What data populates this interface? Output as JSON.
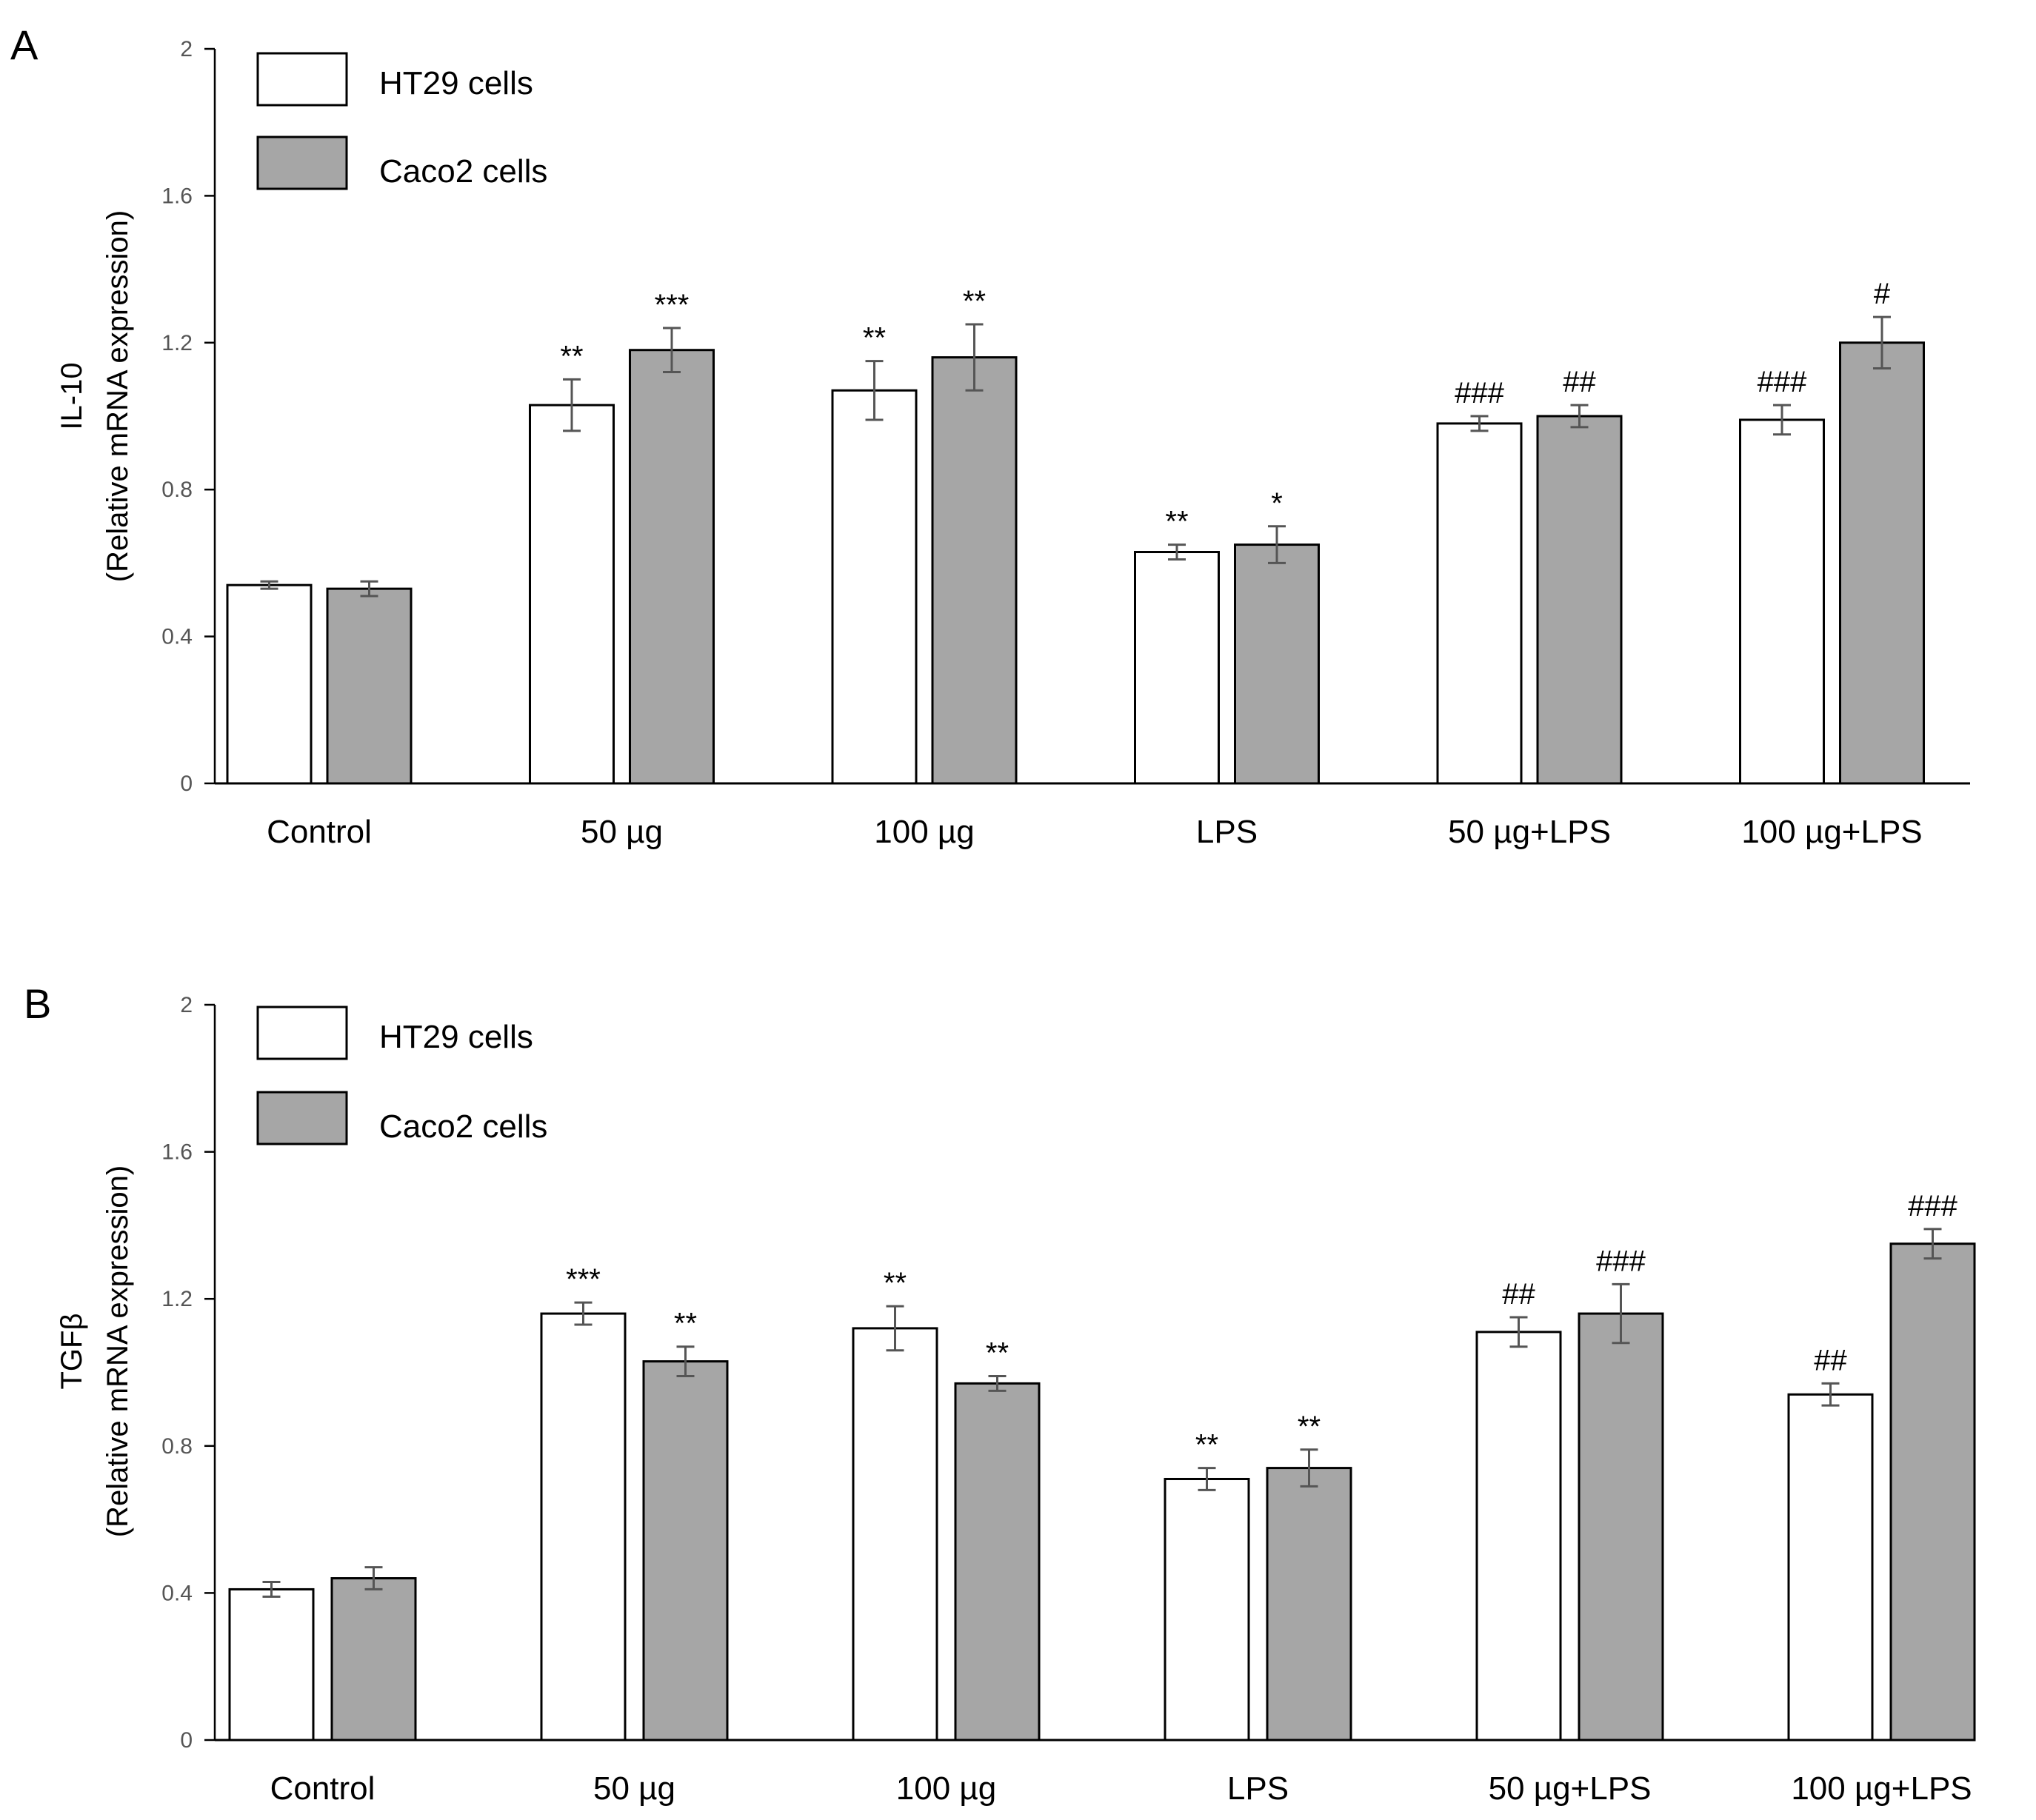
{
  "chart_data": [
    {
      "panel": "A",
      "type": "bar",
      "ylabel_line1": "IL-10",
      "ylabel_line2": "(Relative mRNA expression)",
      "ylim": [
        0,
        2
      ],
      "yticks": [
        "0",
        "0.4",
        "0.8",
        "1.2",
        "1.6",
        "2"
      ],
      "ytick_values": [
        0,
        0.4,
        0.8,
        1.2,
        1.6,
        2
      ],
      "categories": [
        "Control",
        "50 µg",
        "100 µg",
        "LPS",
        "50 µg+LPS",
        "100 µg+LPS"
      ],
      "legend_position": "top-left",
      "series": [
        {
          "name": "HT29 cells",
          "color": "#ffffff",
          "values": [
            0.54,
            1.03,
            1.07,
            0.63,
            0.98,
            0.99
          ],
          "errors": [
            0.01,
            0.07,
            0.08,
            0.02,
            0.02,
            0.04
          ],
          "significance": [
            "",
            "**",
            "**",
            "**",
            "###",
            "###"
          ]
        },
        {
          "name": "Caco2 cells",
          "color": "#a6a6a6",
          "values": [
            0.53,
            1.18,
            1.16,
            0.65,
            1.0,
            1.2
          ],
          "errors": [
            0.02,
            0.06,
            0.09,
            0.05,
            0.03,
            0.07
          ],
          "significance": [
            "",
            "***",
            "**",
            "*",
            "##",
            "#"
          ]
        }
      ]
    },
    {
      "panel": "B",
      "type": "bar",
      "ylabel_line1": "TGFβ",
      "ylabel_line2": "(Relative mRNA expression)",
      "ylim": [
        0,
        2
      ],
      "yticks": [
        "0",
        "0.4",
        "0.8",
        "1.2",
        "1.6",
        "2"
      ],
      "ytick_values": [
        0,
        0.4,
        0.8,
        1.2,
        1.6,
        2
      ],
      "categories": [
        "Control",
        "50 µg",
        "100 µg",
        "LPS",
        "50 µg+LPS",
        "100 µg+LPS"
      ],
      "legend_position": "top-left",
      "series": [
        {
          "name": "HT29 cells",
          "color": "#ffffff",
          "values": [
            0.41,
            1.16,
            1.12,
            0.71,
            1.11,
            0.94
          ],
          "errors": [
            0.02,
            0.03,
            0.06,
            0.03,
            0.04,
            0.03
          ],
          "significance": [
            "",
            "***",
            "**",
            "**",
            "##",
            "##"
          ]
        },
        {
          "name": "Caco2 cells",
          "color": "#a6a6a6",
          "values": [
            0.44,
            1.03,
            0.97,
            0.74,
            1.16,
            1.35
          ],
          "errors": [
            0.03,
            0.04,
            0.02,
            0.05,
            0.08,
            0.04
          ],
          "significance": [
            "",
            "**",
            "**",
            "**",
            "###",
            "###"
          ]
        }
      ]
    }
  ]
}
